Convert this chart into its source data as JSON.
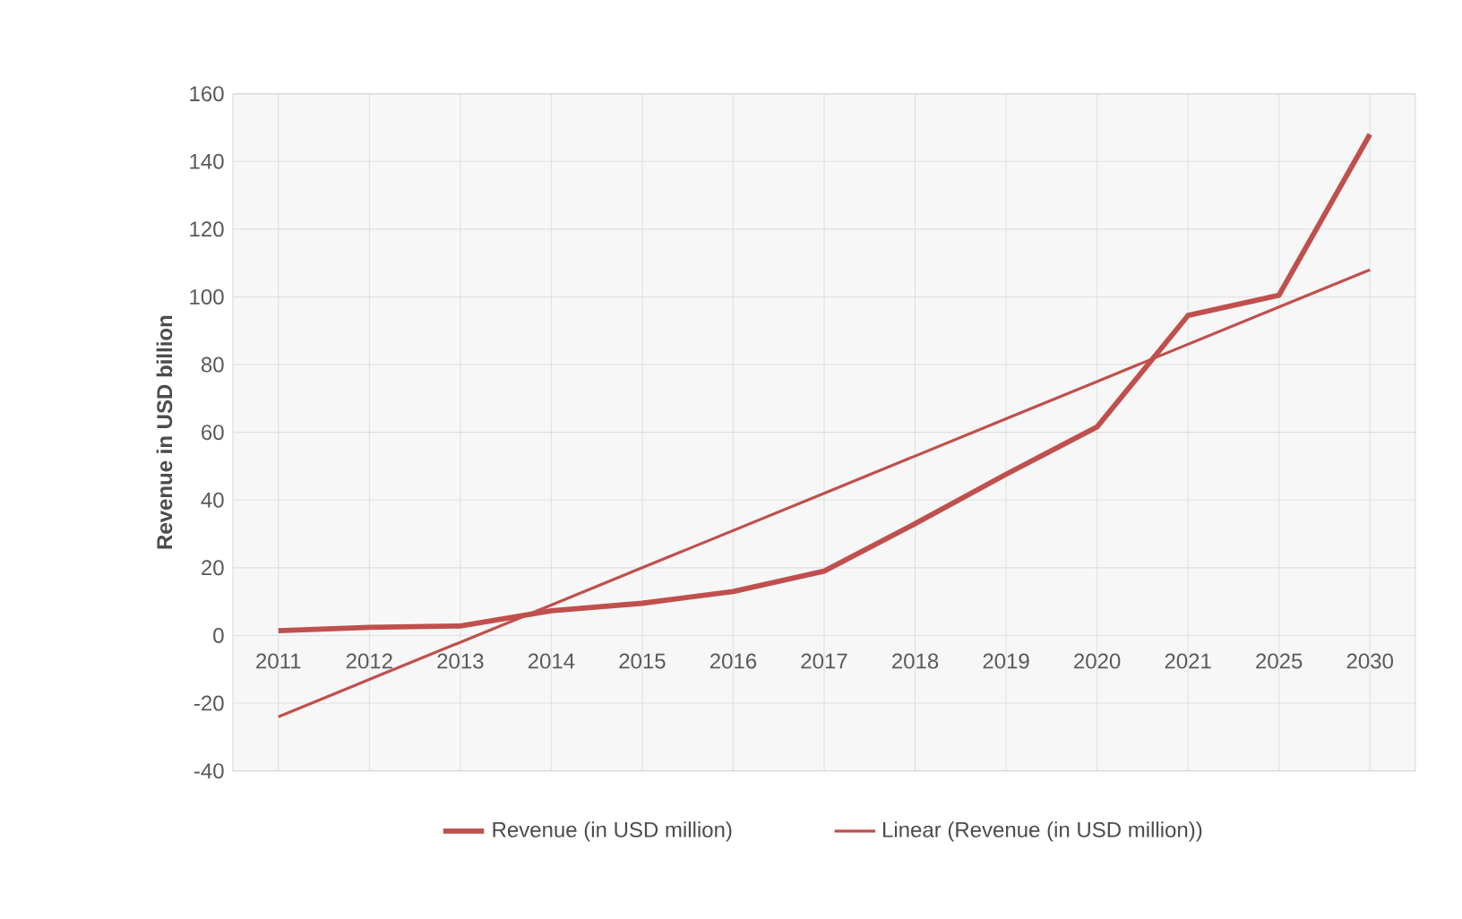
{
  "chart_data": {
    "type": "line",
    "ylabel": "Revenue in USD billion",
    "categories": [
      "2011",
      "2012",
      "2013",
      "2014",
      "2015",
      "2016",
      "2017",
      "2018",
      "2019",
      "2020",
      "2021",
      "2025",
      "2030"
    ],
    "series": [
      {
        "name": "Revenue (in USD million)",
        "color": "#c0504d",
        "values": [
          1.4,
          2.4,
          2.8,
          7.3,
          9.5,
          13,
          19,
          33,
          47.6,
          61.6,
          94.5,
          100.5,
          148
        ]
      },
      {
        "name": "Linear (Revenue (in USD million))",
        "color": "#c0504d",
        "line_style": "solid",
        "values": [
          -24,
          -13,
          -2,
          9,
          20,
          31,
          42,
          53,
          64,
          75,
          86,
          97,
          108
        ]
      }
    ],
    "ylim": [
      -40,
      160
    ],
    "yticks": [
      -40,
      -20,
      0,
      20,
      40,
      60,
      80,
      100,
      120,
      140,
      160
    ],
    "grid": true,
    "legend": "bottom"
  }
}
